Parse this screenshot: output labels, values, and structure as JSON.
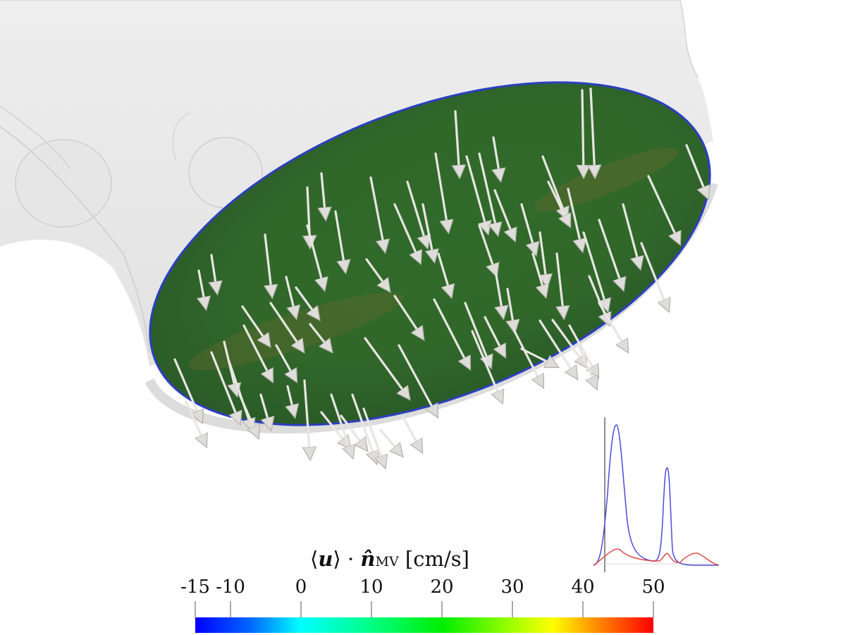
{
  "colorbar": {
    "title_parts": {
      "langle": "⟨",
      "u": "u",
      "rangle": "⟩",
      "dot": "·",
      "n": "n̂",
      "sub": "MV",
      "unit": "[cm/s]"
    },
    "min": -15,
    "max": 50,
    "ticks": [
      {
        "value": -15,
        "label": "-15"
      },
      {
        "value": -10,
        "label": "-10"
      },
      {
        "value": 0,
        "label": "0"
      },
      {
        "value": 10,
        "label": "10"
      },
      {
        "value": 20,
        "label": "20"
      },
      {
        "value": 30,
        "label": "30"
      },
      {
        "value": 40,
        "label": "40"
      },
      {
        "value": 50,
        "label": "50"
      }
    ],
    "colormap": [
      "#0000ff",
      "#0088ff",
      "#00ffff",
      "#00ff88",
      "#00ff00",
      "#ccff00",
      "#ffff00",
      "#ff8800",
      "#ff0000"
    ]
  },
  "colors": {
    "surface_fill": "#2e6b22",
    "surface_rim": "#2b3fc0",
    "vessel": "#ececec",
    "arrow": "#e8e6e2",
    "inset_blue": "#4a4adc",
    "inset_red": "#e04848"
  }
}
